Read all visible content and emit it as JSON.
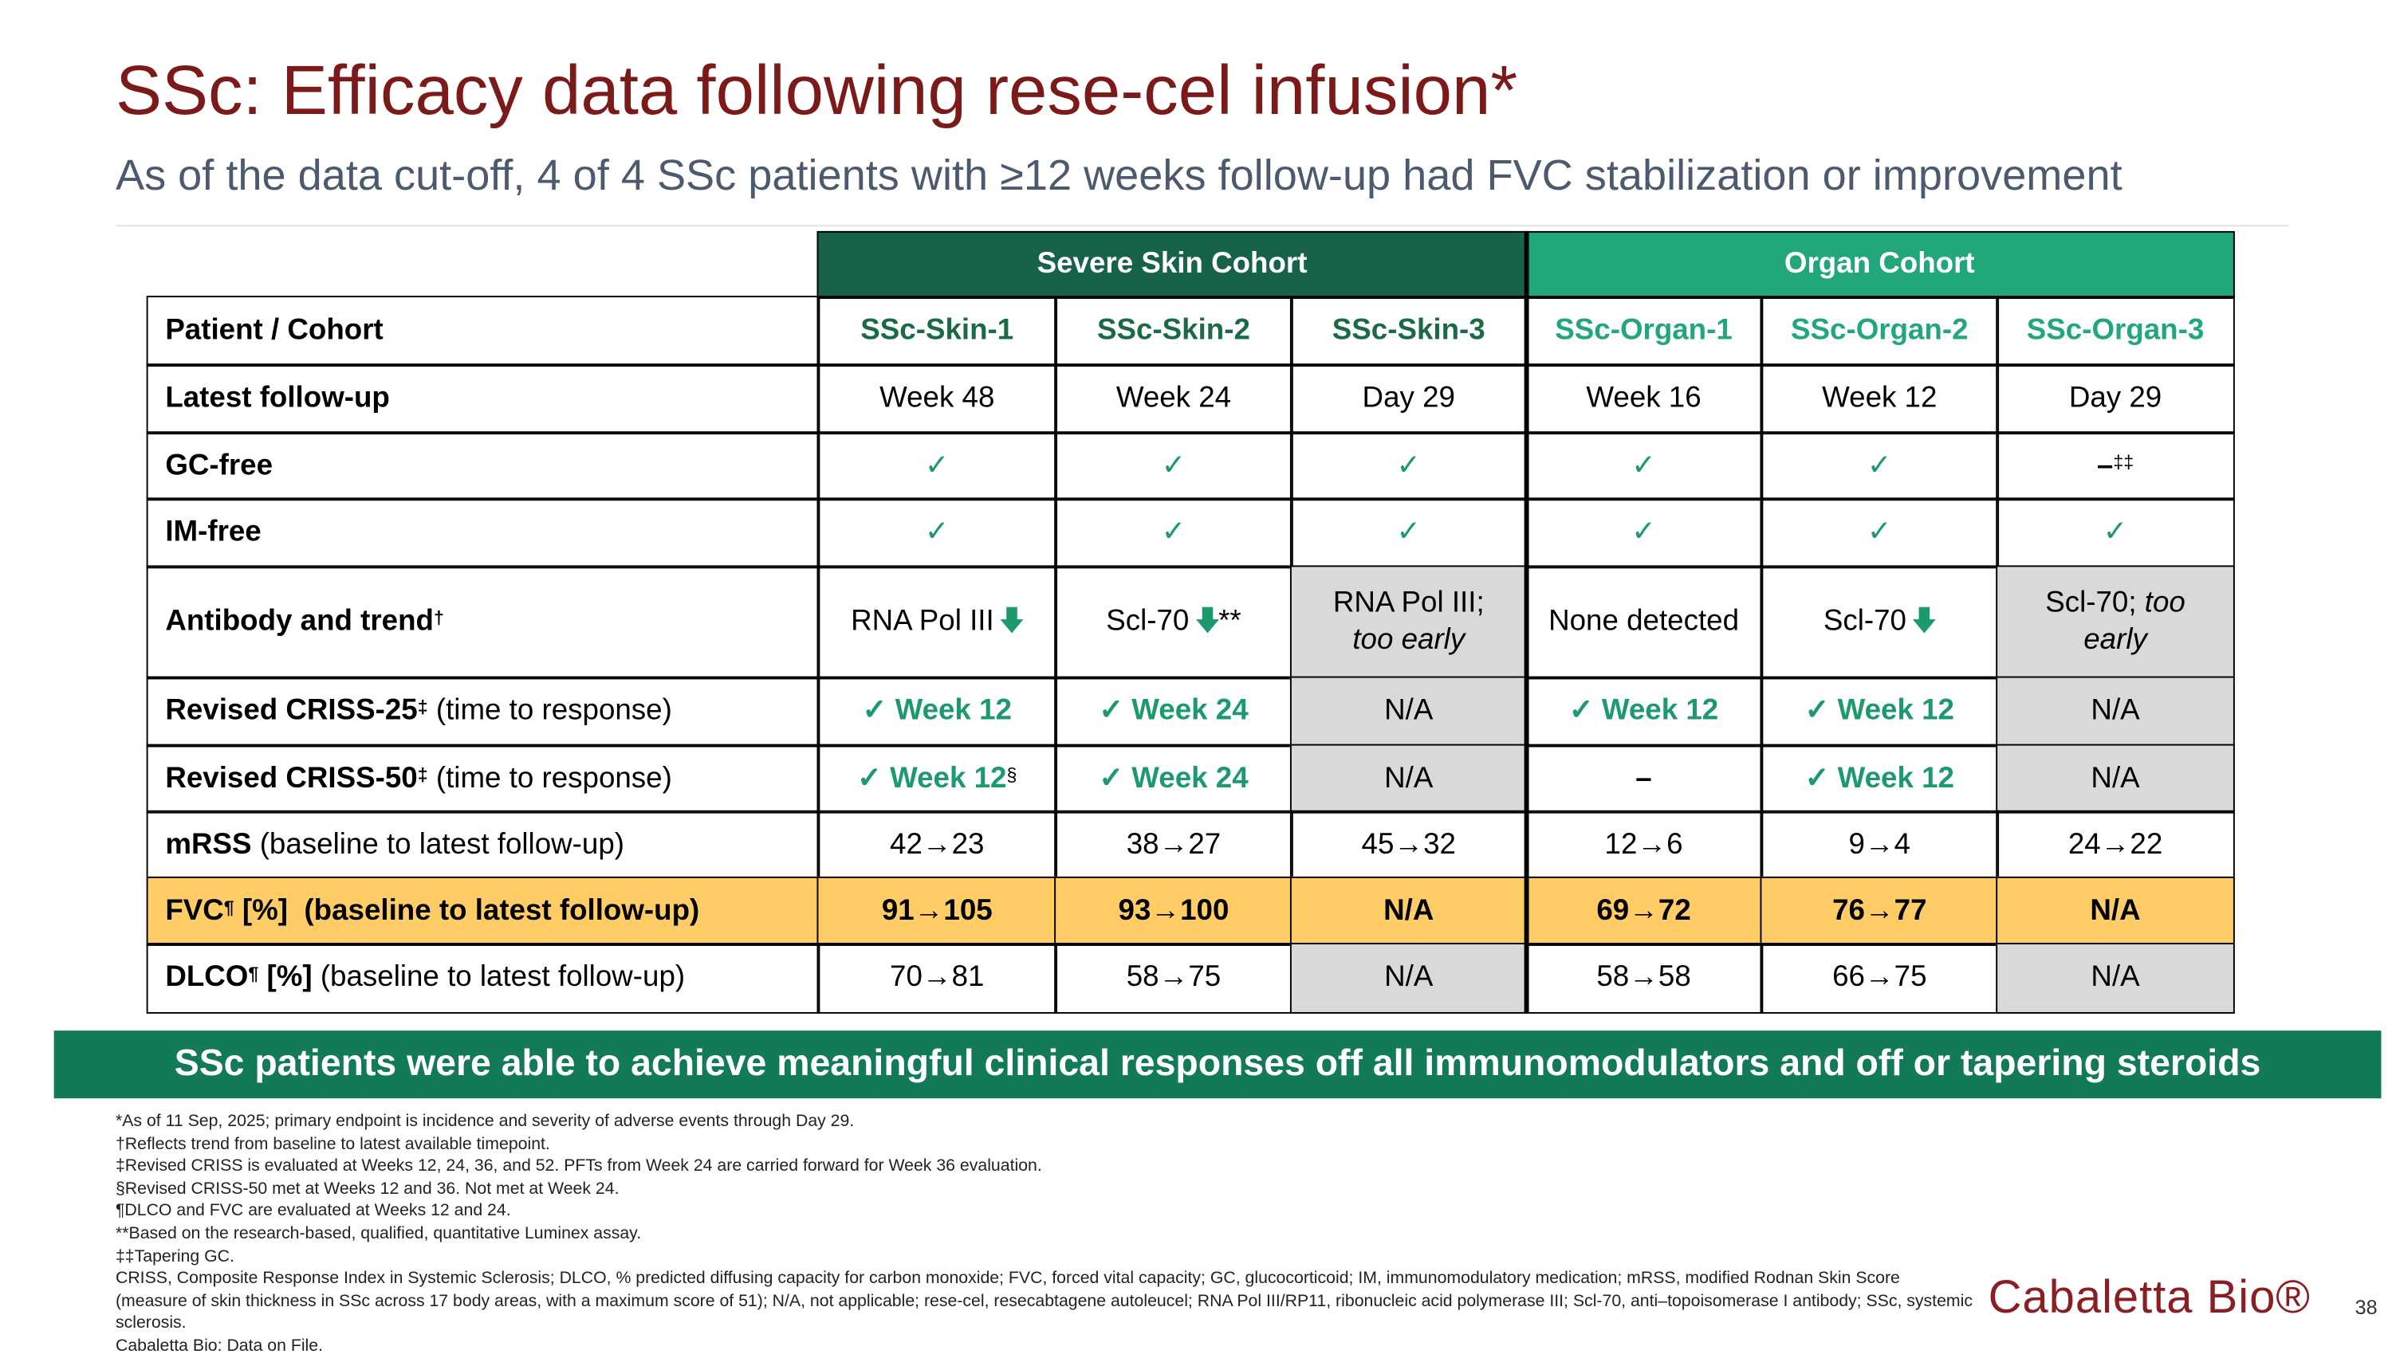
{
  "header": {
    "title": "SSc: Efficacy data following rese-cel infusion*",
    "subtitle": "As of the data cut-off, 4 of 4 SSc patients with ≥12 weeks follow-up had FVC stabilization or improvement"
  },
  "table": {
    "shade_color": "#d9d9d9",
    "cohorts": [
      {
        "name": "Severe Skin Cohort",
        "color": "#17634a"
      },
      {
        "name": "Organ Cohort",
        "color": "#21a77a"
      }
    ],
    "rows": [
      {
        "label": [
          {
            "text": "Patient / Cohort",
            "bold": true
          }
        ],
        "cells": [
          {
            "lines": [
              [
                {
                  "text": "SSc-Skin-1",
                  "bold": true,
                  "color": "#1a6b45"
                }
              ]
            ]
          },
          {
            "lines": [
              [
                {
                  "text": "SSc-Skin-2",
                  "bold": true,
                  "color": "#1a6b45"
                }
              ]
            ]
          },
          {
            "lines": [
              [
                {
                  "text": "SSc-Skin-3",
                  "bold": true,
                  "color": "#1a6b45"
                }
              ]
            ]
          },
          {
            "lines": [
              [
                {
                  "text": "SSc-Organ-1",
                  "bold": true,
                  "color": "#21a77a"
                }
              ]
            ]
          },
          {
            "lines": [
              [
                {
                  "text": "SSc-Organ-2",
                  "bold": true,
                  "color": "#21a77a"
                }
              ]
            ]
          },
          {
            "lines": [
              [
                {
                  "text": "SSc-Organ-3",
                  "bold": true,
                  "color": "#21a77a"
                }
              ]
            ]
          }
        ]
      },
      {
        "label": [
          {
            "text": "Latest follow-up",
            "bold": true
          }
        ],
        "cells": [
          {
            "lines": [
              [
                {
                  "text": "Week 48"
                }
              ]
            ]
          },
          {
            "lines": [
              [
                {
                  "text": "Week 24"
                }
              ]
            ]
          },
          {
            "lines": [
              [
                {
                  "text": "Day 29"
                }
              ]
            ]
          },
          {
            "lines": [
              [
                {
                  "text": "Week 16"
                }
              ]
            ]
          },
          {
            "lines": [
              [
                {
                  "text": "Week 12"
                }
              ]
            ]
          },
          {
            "lines": [
              [
                {
                  "text": "Day 29"
                }
              ]
            ]
          }
        ]
      },
      {
        "label": [
          {
            "text": "GC-free",
            "bold": true
          }
        ],
        "cells": [
          {
            "lines": [
              [
                {
                  "text": "✓",
                  "color": "#1d9a6c"
                }
              ]
            ]
          },
          {
            "lines": [
              [
                {
                  "text": "✓",
                  "color": "#1d9a6c"
                }
              ]
            ]
          },
          {
            "lines": [
              [
                {
                  "text": "✓",
                  "color": "#1d9a6c"
                }
              ]
            ]
          },
          {
            "lines": [
              [
                {
                  "text": "✓",
                  "color": "#1d9a6c"
                }
              ]
            ]
          },
          {
            "lines": [
              [
                {
                  "text": "✓",
                  "color": "#1d9a6c"
                }
              ]
            ]
          },
          {
            "lines": [
              [
                {
                  "text": "–",
                  "bold": true
                },
                {
                  "text": "‡‡",
                  "sup": true
                }
              ]
            ]
          }
        ]
      },
      {
        "label": [
          {
            "text": "IM-free",
            "bold": true
          }
        ],
        "cells": [
          {
            "lines": [
              [
                {
                  "text": "✓",
                  "color": "#1d9a6c"
                }
              ]
            ]
          },
          {
            "lines": [
              [
                {
                  "text": "✓",
                  "color": "#1d9a6c"
                }
              ]
            ]
          },
          {
            "lines": [
              [
                {
                  "text": "✓",
                  "color": "#1d9a6c"
                }
              ]
            ]
          },
          {
            "lines": [
              [
                {
                  "text": "✓",
                  "color": "#1d9a6c"
                }
              ]
            ]
          },
          {
            "lines": [
              [
                {
                  "text": "✓",
                  "color": "#1d9a6c"
                }
              ]
            ]
          },
          {
            "lines": [
              [
                {
                  "text": "✓",
                  "color": "#1d9a6c"
                }
              ]
            ]
          }
        ]
      },
      {
        "label": [
          {
            "text": "Antibody and trend",
            "bold": true
          },
          {
            "text": "†",
            "sup": true,
            "bold": true
          }
        ],
        "cells": [
          {
            "lines": [
              [
                {
                  "text": "RNA Pol III"
                },
                {
                  "icon": "down"
                }
              ]
            ]
          },
          {
            "lines": [
              [
                {
                  "text": "Scl-70"
                },
                {
                  "icon": "down"
                },
                {
                  "text": "**"
                }
              ]
            ]
          },
          {
            "lines": [
              [
                {
                  "text": "RNA Pol III;"
                }
              ],
              [
                {
                  "text": "too early",
                  "italic": true
                }
              ]
            ],
            "shaded": true
          },
          {
            "lines": [
              [
                {
                  "text": "None detected"
                }
              ]
            ]
          },
          {
            "lines": [
              [
                {
                  "text": "Scl-70"
                },
                {
                  "icon": "down"
                }
              ]
            ]
          },
          {
            "lines": [
              [
                {
                  "text": "Scl-70; "
                },
                {
                  "text": "too",
                  "italic": true
                }
              ],
              [
                {
                  "text": "early",
                  "italic": true
                }
              ]
            ],
            "shaded": true
          }
        ]
      },
      {
        "label": [
          {
            "text": "Revised CRISS-25",
            "bold": true
          },
          {
            "text": "‡",
            "sup": true,
            "bold": true
          },
          {
            "text": " (time to response)"
          }
        ],
        "cells": [
          {
            "lines": [
              [
                {
                  "text": "✓ Week 12",
                  "bold": true,
                  "color": "#1d9a6c"
                }
              ]
            ]
          },
          {
            "lines": [
              [
                {
                  "text": "✓ Week 24",
                  "bold": true,
                  "color": "#1d9a6c"
                }
              ]
            ]
          },
          {
            "lines": [
              [
                {
                  "text": "N/A"
                }
              ]
            ],
            "shaded": true
          },
          {
            "lines": [
              [
                {
                  "text": "✓ Week 12",
                  "bold": true,
                  "color": "#1d9a6c"
                }
              ]
            ]
          },
          {
            "lines": [
              [
                {
                  "text": "✓ Week 12",
                  "bold": true,
                  "color": "#1d9a6c"
                }
              ]
            ]
          },
          {
            "lines": [
              [
                {
                  "text": "N/A"
                }
              ]
            ],
            "shaded": true
          }
        ]
      },
      {
        "label": [
          {
            "text": "Revised CRISS-50",
            "bold": true
          },
          {
            "text": "‡",
            "sup": true,
            "bold": true
          },
          {
            "text": " (time to response)"
          }
        ],
        "cells": [
          {
            "lines": [
              [
                {
                  "text": "✓ Week 12",
                  "bold": true,
                  "color": "#1d9a6c"
                },
                {
                  "text": "§",
                  "sup": true
                }
              ]
            ]
          },
          {
            "lines": [
              [
                {
                  "text": "✓ Week 24",
                  "bold": true,
                  "color": "#1d9a6c"
                }
              ]
            ]
          },
          {
            "lines": [
              [
                {
                  "text": "N/A"
                }
              ]
            ],
            "shaded": true
          },
          {
            "lines": [
              [
                {
                  "text": "–",
                  "bold": true
                }
              ]
            ]
          },
          {
            "lines": [
              [
                {
                  "text": "✓ Week 12",
                  "bold": true,
                  "color": "#1d9a6c"
                }
              ]
            ]
          },
          {
            "lines": [
              [
                {
                  "text": "N/A"
                }
              ]
            ],
            "shaded": true
          }
        ]
      },
      {
        "label": [
          {
            "text": "mRSS",
            "bold": true
          },
          {
            "text": " (baseline to latest follow-up)"
          }
        ],
        "cells": [
          {
            "lines": [
              [
                {
                  "text": "42→23"
                }
              ]
            ]
          },
          {
            "lines": [
              [
                {
                  "text": "38→27"
                }
              ]
            ]
          },
          {
            "lines": [
              [
                {
                  "text": "45→32"
                }
              ]
            ]
          },
          {
            "lines": [
              [
                {
                  "text": "12→6"
                }
              ]
            ]
          },
          {
            "lines": [
              [
                {
                  "text": "9→4"
                }
              ]
            ]
          },
          {
            "lines": [
              [
                {
                  "text": "24→22"
                }
              ]
            ]
          }
        ]
      },
      {
        "fill": "#ffcc66",
        "label": [
          {
            "text": "FVC",
            "bold": true
          },
          {
            "text": "¶",
            "sup": true,
            "bold": true
          },
          {
            "text": " [%]  (baseline to latest follow-up)",
            "bold": true
          }
        ],
        "cells": [
          {
            "lines": [
              [
                {
                  "text": "91→105",
                  "bold": true
                }
              ]
            ]
          },
          {
            "lines": [
              [
                {
                  "text": "93→100",
                  "bold": true
                }
              ]
            ]
          },
          {
            "lines": [
              [
                {
                  "text": "N/A",
                  "bold": true
                }
              ]
            ]
          },
          {
            "lines": [
              [
                {
                  "text": "69→72",
                  "bold": true
                }
              ]
            ]
          },
          {
            "lines": [
              [
                {
                  "text": "76→77",
                  "bold": true
                }
              ]
            ]
          },
          {
            "lines": [
              [
                {
                  "text": "N/A",
                  "bold": true
                }
              ]
            ]
          }
        ]
      },
      {
        "label": [
          {
            "text": "DLCO",
            "bold": true
          },
          {
            "text": "¶",
            "sup": true,
            "bold": true
          },
          {
            "text": " [%]",
            "bold": true
          },
          {
            "text": " (baseline to latest follow-up)"
          }
        ],
        "cells": [
          {
            "lines": [
              [
                {
                  "text": "70→81"
                }
              ]
            ]
          },
          {
            "lines": [
              [
                {
                  "text": "58→75"
                }
              ]
            ]
          },
          {
            "lines": [
              [
                {
                  "text": "N/A"
                }
              ]
            ],
            "shaded": true
          },
          {
            "lines": [
              [
                {
                  "text": "58→58"
                }
              ]
            ]
          },
          {
            "lines": [
              [
                {
                  "text": "66→75"
                }
              ]
            ]
          },
          {
            "lines": [
              [
                {
                  "text": "N/A"
                }
              ]
            ],
            "shaded": true
          }
        ]
      }
    ]
  },
  "banner": "SSc patients were able to achieve meaningful clinical responses off all immunomodulators and off or tapering steroids",
  "footnotes": [
    "*As of 11 Sep, 2025; primary endpoint is incidence and severity of adverse events through Day 29.",
    "†Reflects trend from baseline to latest available timepoint.",
    "‡Revised CRISS is evaluated at Weeks 12, 24, 36, and 52. PFTs from Week 24 are carried forward for Week 36 evaluation.",
    "§Revised CRISS-50 met at Weeks 12 and 36. Not met at Week 24.",
    "¶DLCO and FVC are evaluated at Weeks 12 and 24.",
    "**Based on the research-based, qualified, quantitative Luminex assay.",
    "‡‡Tapering GC.",
    "CRISS, Composite Response Index in Systemic Sclerosis; DLCO, % predicted diffusing capacity for carbon monoxide; FVC, forced vital capacity; GC, glucocorticoid; IM, immunomodulatory medication; mRSS, modified Rodnan Skin Score (measure of skin thickness in SSc across 17 body areas, with a maximum score of 51); N/A, not applicable; rese-cel, resecabtagene autoleucel; RNA Pol III/RP11, ribonucleic acid polymerase III; Scl-70, anti–topoisomerase I antibody; SSc, systemic sclerosis.",
    "Cabaletta Bio: Data on File."
  ],
  "logo": "Cabaletta Bio®",
  "page_number": "38"
}
